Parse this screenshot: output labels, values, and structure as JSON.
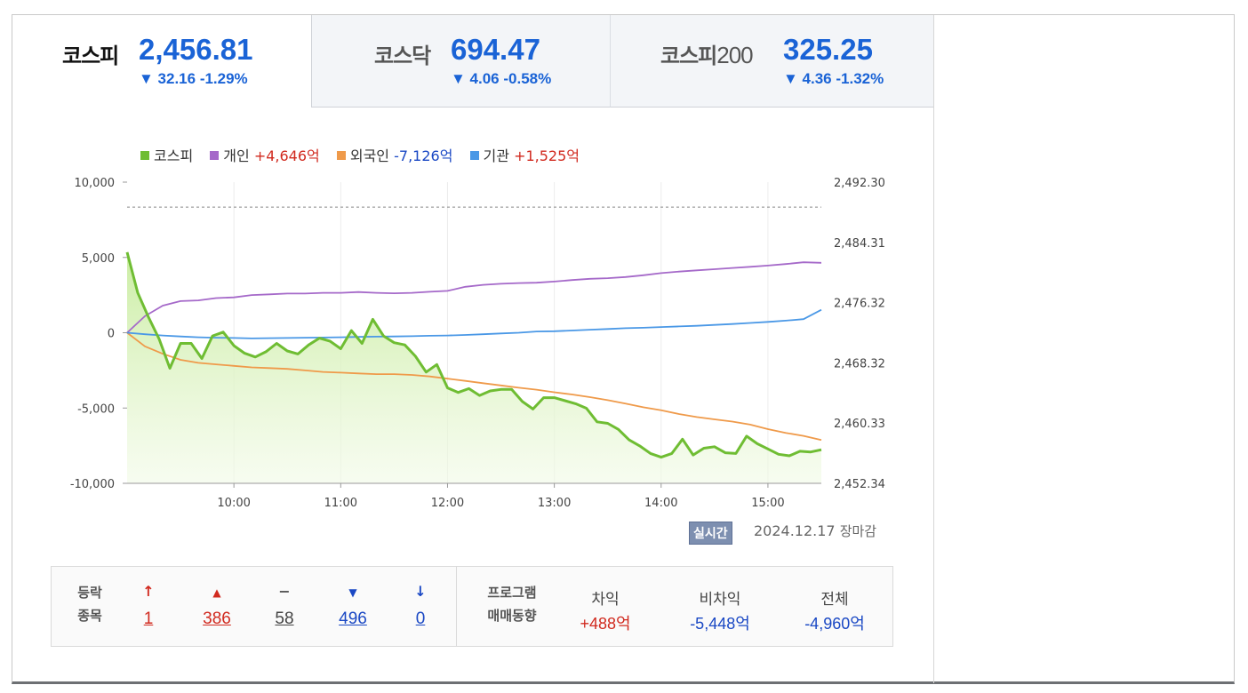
{
  "tabs": [
    {
      "name": "코스피",
      "value": "2,456.81",
      "change": "▼ 32.16 -1.29%",
      "selected": true
    },
    {
      "name": "코스닥",
      "value": "694.47",
      "change": "▼ 4.06 -0.58%",
      "selected": false
    },
    {
      "name": "코스피",
      "name_suffix": "200",
      "value": "325.25",
      "change": "▼ 4.36 -1.32%",
      "selected": false
    }
  ],
  "legend": {
    "kospi": {
      "label": "코스피",
      "color": "#6fbd33"
    },
    "individual": {
      "label": "개인",
      "value": "+4,646억",
      "color": "#a569c9"
    },
    "foreign": {
      "label": "외국인",
      "value": "-7,126억",
      "color": "#ef9a4a"
    },
    "institution": {
      "label": "기관",
      "value": "+1,525억",
      "color": "#4a98e6"
    }
  },
  "status": {
    "realtime": "실시간",
    "date": "2024.12.17",
    "market_state": "장마감"
  },
  "advance_decline": {
    "label_line1": "등락",
    "label_line2": "종목",
    "upper_limit": "1",
    "up": "386",
    "flat": "58",
    "down": "496",
    "lower_limit": "0"
  },
  "program": {
    "label_line1": "프로그램",
    "label_line2": "매매동향",
    "arbitrage_label": "차익",
    "arbitrage_value": "+488억",
    "non_arbitrage_label": "비차익",
    "non_arbitrage_value": "-5,448억",
    "total_label": "전체",
    "total_value": "-4,960억"
  },
  "chart_data": {
    "type": "line",
    "title": "",
    "left_axis": {
      "ticks": [
        "10,000",
        "5,000",
        "0",
        "-5,000",
        "-10,000"
      ],
      "values": [
        10000,
        5000,
        0,
        -5000,
        -10000
      ],
      "ylim": [
        -10000,
        10000
      ],
      "unit": "억"
    },
    "right_axis": {
      "ticks": [
        "2,492.30",
        "2,484.31",
        "2,476.32",
        "2,468.32",
        "2,460.33",
        "2,452.34"
      ],
      "values": [
        2492.3,
        2484.31,
        2476.32,
        2468.32,
        2460.33,
        2452.34
      ],
      "ylim": [
        2452.34,
        2492.3
      ]
    },
    "x_ticks": [
      "10:00",
      "11:00",
      "12:00",
      "13:00",
      "14:00",
      "15:00"
    ],
    "x_tick_values": [
      60,
      120,
      180,
      240,
      300,
      360
    ],
    "xlim": [
      0,
      390
    ],
    "reference_line": {
      "axis": "right",
      "value": 2488.99
    },
    "series": [
      {
        "name": "코스피",
        "axis": "right",
        "color": "#6fbd33",
        "x": [
          0,
          6,
          12,
          18,
          24,
          30,
          36,
          42,
          48,
          54,
          60,
          66,
          72,
          78,
          84,
          90,
          96,
          102,
          108,
          114,
          120,
          126,
          132,
          138,
          144,
          150,
          156,
          162,
          168,
          174,
          180,
          186,
          192,
          198,
          204,
          210,
          216,
          222,
          228,
          234,
          240,
          246,
          252,
          258,
          264,
          270,
          276,
          282,
          288,
          294,
          300,
          306,
          312,
          318,
          324,
          330,
          336,
          342,
          348,
          354,
          360,
          366,
          372,
          378,
          384,
          390
        ],
        "y": [
          2483.0,
          2477.6,
          2474.4,
          2471.5,
          2467.6,
          2470.9,
          2470.9,
          2468.9,
          2471.9,
          2472.4,
          2470.6,
          2469.6,
          2469.1,
          2469.8,
          2470.9,
          2469.9,
          2469.5,
          2470.7,
          2471.6,
          2471.2,
          2470.2,
          2472.6,
          2470.9,
          2474.1,
          2471.9,
          2471.0,
          2470.7,
          2469.2,
          2467.1,
          2468.1,
          2465.0,
          2464.4,
          2464.9,
          2464.0,
          2464.6,
          2464.8,
          2464.8,
          2463.2,
          2462.2,
          2463.7,
          2463.7,
          2463.3,
          2462.9,
          2462.3,
          2460.5,
          2460.3,
          2459.5,
          2458.1,
          2457.3,
          2456.3,
          2455.8,
          2456.3,
          2458.2,
          2456.1,
          2457.0,
          2457.2,
          2456.4,
          2456.3,
          2458.6,
          2457.6,
          2456.9,
          2456.2,
          2456.0,
          2456.6,
          2456.5,
          2456.8
        ]
      },
      {
        "name": "개인",
        "axis": "left",
        "color": "#a569c9",
        "x": [
          0,
          10,
          20,
          30,
          40,
          50,
          60,
          70,
          80,
          90,
          100,
          110,
          120,
          130,
          140,
          150,
          160,
          170,
          180,
          190,
          200,
          210,
          220,
          230,
          240,
          250,
          260,
          270,
          280,
          290,
          300,
          310,
          320,
          330,
          340,
          350,
          360,
          370,
          380,
          390
        ],
        "y": [
          0,
          1100,
          1800,
          2100,
          2150,
          2300,
          2350,
          2500,
          2550,
          2600,
          2600,
          2650,
          2650,
          2700,
          2650,
          2620,
          2650,
          2720,
          2780,
          3050,
          3180,
          3250,
          3300,
          3320,
          3400,
          3500,
          3580,
          3620,
          3700,
          3820,
          3960,
          4060,
          4140,
          4220,
          4300,
          4380,
          4460,
          4560,
          4680,
          4646
        ]
      },
      {
        "name": "외국인",
        "axis": "left",
        "color": "#ef9a4a",
        "x": [
          0,
          10,
          20,
          30,
          40,
          50,
          60,
          70,
          80,
          90,
          100,
          110,
          120,
          130,
          140,
          150,
          160,
          170,
          180,
          190,
          200,
          210,
          220,
          230,
          240,
          250,
          260,
          270,
          280,
          290,
          300,
          310,
          320,
          330,
          340,
          350,
          360,
          370,
          380,
          390
        ],
        "y": [
          0,
          -900,
          -1400,
          -1800,
          -2000,
          -2100,
          -2200,
          -2300,
          -2350,
          -2400,
          -2500,
          -2600,
          -2650,
          -2700,
          -2750,
          -2750,
          -2800,
          -2900,
          -3050,
          -3200,
          -3350,
          -3500,
          -3650,
          -3780,
          -3950,
          -4100,
          -4280,
          -4480,
          -4700,
          -4950,
          -5150,
          -5400,
          -5600,
          -5750,
          -5900,
          -6100,
          -6400,
          -6650,
          -6850,
          -7126
        ]
      },
      {
        "name": "기관",
        "axis": "left",
        "color": "#4a98e6",
        "x": [
          0,
          10,
          20,
          30,
          40,
          50,
          60,
          70,
          80,
          90,
          100,
          110,
          120,
          130,
          140,
          150,
          160,
          170,
          180,
          190,
          200,
          210,
          220,
          230,
          240,
          250,
          260,
          270,
          280,
          290,
          300,
          310,
          320,
          330,
          340,
          350,
          360,
          370,
          380,
          390
        ],
        "y": [
          0,
          -100,
          -180,
          -250,
          -300,
          -330,
          -350,
          -380,
          -360,
          -350,
          -330,
          -320,
          -300,
          -280,
          -260,
          -250,
          -230,
          -200,
          -180,
          -150,
          -100,
          -50,
          0,
          80,
          100,
          150,
          200,
          250,
          300,
          330,
          380,
          420,
          460,
          520,
          580,
          650,
          720,
          800,
          900,
          1525
        ]
      }
    ]
  }
}
